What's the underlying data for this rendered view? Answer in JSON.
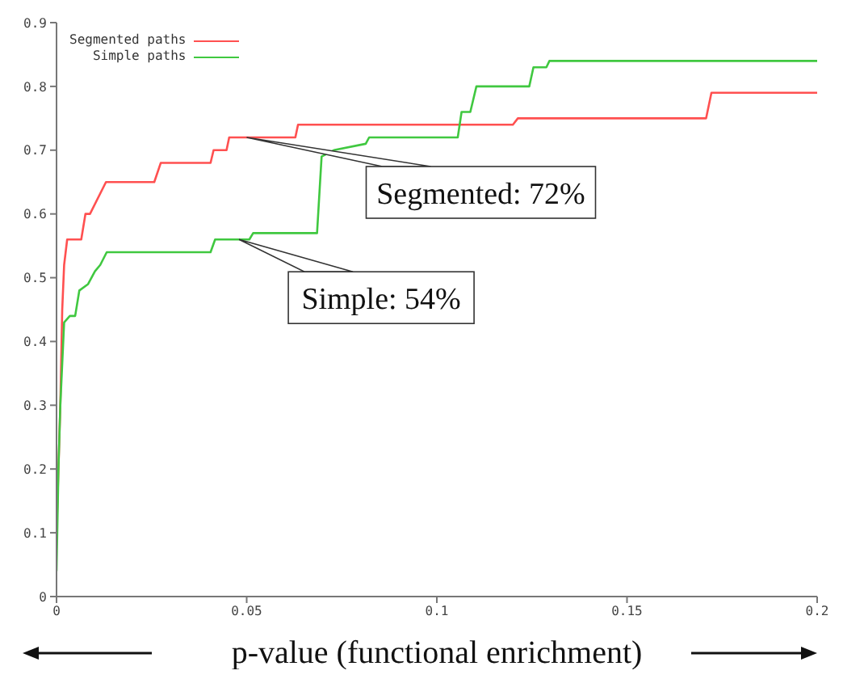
{
  "chart_data": {
    "type": "line",
    "xlabel": "p-value (functional enrichment)",
    "xlim": [
      0,
      0.2
    ],
    "xticks": [
      0,
      0.05,
      0.1,
      0.15,
      0.2
    ],
    "ylim": [
      0,
      0.9
    ],
    "yticks": [
      0,
      0.1,
      0.2,
      0.3,
      0.4,
      0.5,
      0.6,
      0.7,
      0.8,
      0.9
    ],
    "grid": false,
    "legend": "top left",
    "marker": "none",
    "line_style": "solid",
    "series": [
      {
        "name": "Segmented paths",
        "color": "#ff5050",
        "x": [
          0,
          0.0005,
          0.001,
          0.0015,
          0.002,
          0.0028,
          0.0065,
          0.0076,
          0.0088,
          0.013,
          0.0257,
          0.0274,
          0.0405,
          0.0413,
          0.0447,
          0.0454,
          0.0628,
          0.0635,
          0.12,
          0.1213,
          0.1708,
          0.1722,
          0.2
        ],
        "values": [
          0.1,
          0.2,
          0.3,
          0.45,
          0.52,
          0.56,
          0.56,
          0.6,
          0.6,
          0.65,
          0.65,
          0.68,
          0.68,
          0.7,
          0.7,
          0.72,
          0.72,
          0.74,
          0.74,
          0.75,
          0.75,
          0.79,
          0.79
        ]
      },
      {
        "name": "Simple paths",
        "color": "#40c840",
        "x": [
          0,
          0.0005,
          0.001,
          0.002,
          0.0035,
          0.0049,
          0.006,
          0.0083,
          0.0101,
          0.0115,
          0.0132,
          0.0405,
          0.0417,
          0.0507,
          0.0517,
          0.0685,
          0.0697,
          0.0729,
          0.0813,
          0.0822,
          0.1055,
          0.1065,
          0.1088,
          0.1104,
          0.1243,
          0.1254,
          0.1288,
          0.1296,
          0.2
        ],
        "values": [
          0.04,
          0.2,
          0.3,
          0.43,
          0.44,
          0.44,
          0.48,
          0.49,
          0.51,
          0.52,
          0.54,
          0.54,
          0.56,
          0.56,
          0.57,
          0.57,
          0.69,
          0.7,
          0.71,
          0.72,
          0.72,
          0.76,
          0.76,
          0.8,
          0.8,
          0.83,
          0.83,
          0.84,
          0.84
        ]
      }
    ],
    "annotations": [
      {
        "text": "Segmented: 72%",
        "x": 0.05,
        "y": 0.72
      },
      {
        "text": "Simple: 54%",
        "x": 0.048,
        "y": 0.56
      }
    ]
  }
}
